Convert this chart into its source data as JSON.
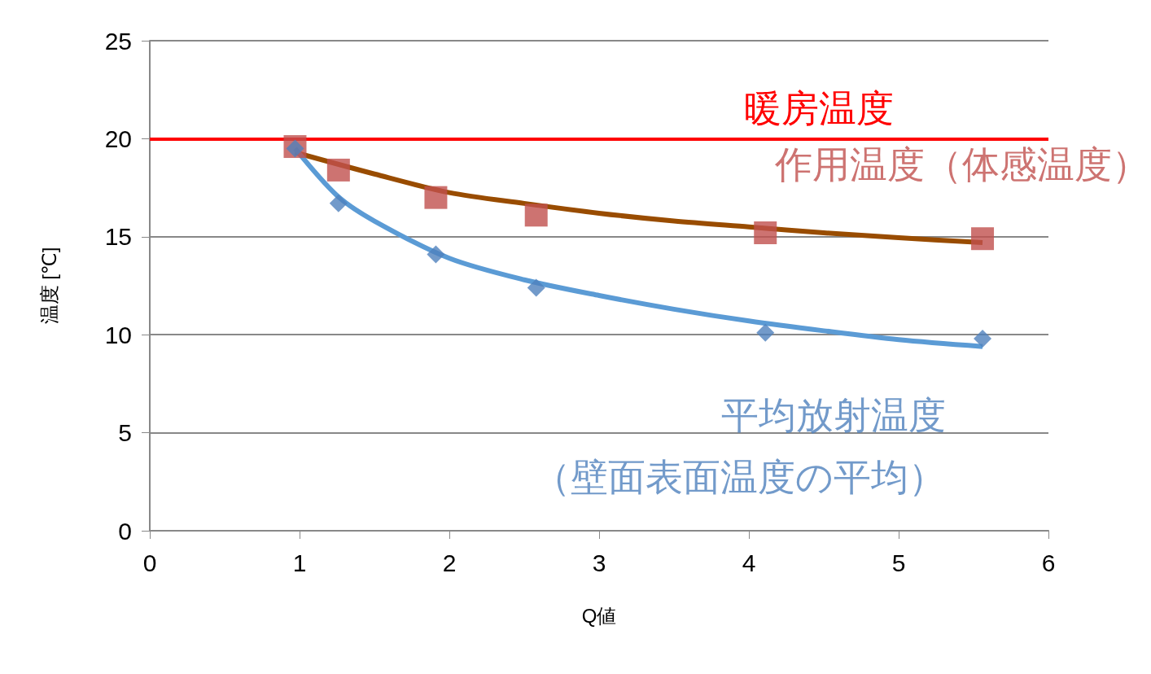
{
  "chart_data": {
    "type": "scatter",
    "xlabel": "Q値",
    "ylabel": "温度 [℃]",
    "xlim": [
      0,
      6
    ],
    "xticks": [
      0,
      1,
      2,
      3,
      4,
      5,
      6
    ],
    "ylim": [
      0,
      25
    ],
    "yticks": [
      0,
      5,
      10,
      15,
      20,
      25
    ],
    "grid": "y",
    "legend": false,
    "series": [
      {
        "name": "作用温度（体感温度）",
        "color": "#c0504d",
        "marker": "square",
        "x": [
          0.97,
          1.26,
          1.91,
          2.58,
          4.11,
          5.56
        ],
        "values": [
          19.6,
          18.4,
          17.0,
          16.1,
          15.2,
          14.9
        ]
      },
      {
        "name": "平均放射温度（壁面表面温度の平均）",
        "color": "#4f81bd",
        "marker": "diamond",
        "x": [
          0.97,
          1.26,
          1.91,
          2.58,
          4.11,
          5.56
        ],
        "values": [
          19.5,
          16.7,
          14.1,
          12.4,
          10.1,
          9.8
        ]
      },
      {
        "type": "line",
        "color": "#994c00",
        "marker": "none",
        "x": [
          0.97,
          1.5,
          2,
          2.5,
          3,
          3.5,
          4,
          4.5,
          5,
          5.56
        ],
        "values": [
          19.3,
          18.2,
          17.25,
          16.7,
          16.2,
          15.8,
          15.5,
          15.2,
          14.95,
          14.7
        ]
      },
      {
        "type": "line",
        "color": "#5b9bd5",
        "marker": "none",
        "x": [
          0.97,
          1.25,
          1.5,
          2,
          2.5,
          3,
          3.5,
          4,
          4.5,
          5,
          5.56
        ],
        "values": [
          19.5,
          17.1,
          15.8,
          13.9,
          12.8,
          12.0,
          11.3,
          10.7,
          10.2,
          9.75,
          9.4
        ]
      }
    ],
    "ref_lines": [
      {
        "axis": "y",
        "value": 20,
        "label": "暖房温度",
        "color": "#ff0000"
      }
    ]
  }
}
